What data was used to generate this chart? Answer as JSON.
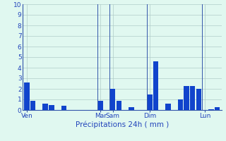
{
  "values": [
    2.6,
    0.9,
    0.0,
    0.6,
    0.5,
    0.0,
    0.4,
    0.0,
    0.0,
    0.0,
    0.0,
    0.0,
    0.9,
    0.0,
    2.0,
    0.9,
    0.0,
    0.3,
    0.0,
    0.0,
    1.5,
    4.6,
    0.0,
    0.6,
    0.0,
    1.0,
    2.3,
    2.3,
    2.0,
    0.0,
    0.1,
    0.3
  ],
  "bar_color": "#1144cc",
  "background_color": "#e0f8f0",
  "grid_color": "#b0ccc8",
  "axis_color": "#3355aa",
  "text_color": "#2244bb",
  "xlabel": "Précipitations 24h ( mm )",
  "day_labels": [
    "Ven",
    "Mar",
    "Sam",
    "Dim",
    "Lun"
  ],
  "day_tick_positions": [
    0,
    12,
    14,
    20,
    29
  ],
  "vline_positions": [
    11.5,
    13.5,
    19.5,
    28.5
  ],
  "ylim": [
    0,
    10
  ],
  "yticks": [
    0,
    1,
    2,
    3,
    4,
    5,
    6,
    7,
    8,
    9,
    10
  ],
  "tick_fontsize": 6.5,
  "xlabel_fontsize": 7.5
}
